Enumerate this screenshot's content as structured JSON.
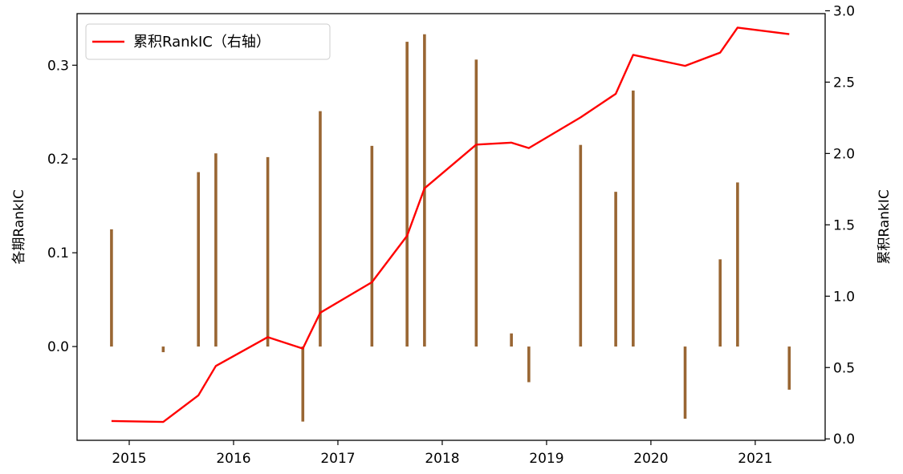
{
  "chart_data": {
    "type": "bar+line",
    "x_ticks": [
      "2015",
      "2016",
      "2017",
      "2018",
      "2019",
      "2020",
      "2021"
    ],
    "left_axis": {
      "label": "各期RankIC",
      "ylim": [
        -0.1,
        0.355
      ],
      "ticks": [
        0.0,
        0.1,
        0.2,
        0.3
      ],
      "tick_labels": [
        "0.0",
        "0.1",
        "0.2",
        "0.3"
      ]
    },
    "right_axis": {
      "label": "累积RankIC",
      "ylim": [
        -0.01,
        2.98
      ],
      "ticks": [
        0.0,
        0.5,
        1.0,
        1.5,
        2.0,
        2.5,
        3.0
      ],
      "tick_labels": [
        "0.0",
        "0.5",
        "1.0",
        "1.5",
        "2.0",
        "2.5",
        "3.0"
      ]
    },
    "bars": {
      "color": "#996633",
      "points": [
        {
          "x": "2014-10-31",
          "y": 0.125
        },
        {
          "x": "2015-04-30",
          "y": -0.006
        },
        {
          "x": "2015-08-31",
          "y": 0.186
        },
        {
          "x": "2015-10-31",
          "y": 0.206
        },
        {
          "x": "2016-04-30",
          "y": 0.202
        },
        {
          "x": "2016-08-31",
          "y": -0.08
        },
        {
          "x": "2016-10-31",
          "y": 0.251
        },
        {
          "x": "2017-04-30",
          "y": 0.214
        },
        {
          "x": "2017-08-31",
          "y": 0.325
        },
        {
          "x": "2017-10-31",
          "y": 0.333
        },
        {
          "x": "2018-04-30",
          "y": 0.306
        },
        {
          "x": "2018-08-31",
          "y": 0.014
        },
        {
          "x": "2018-10-31",
          "y": -0.038
        },
        {
          "x": "2019-04-30",
          "y": 0.215
        },
        {
          "x": "2019-08-31",
          "y": 0.165
        },
        {
          "x": "2019-10-31",
          "y": 0.273
        },
        {
          "x": "2020-04-30",
          "y": -0.077
        },
        {
          "x": "2020-08-31",
          "y": 0.093
        },
        {
          "x": "2020-10-31",
          "y": 0.175
        },
        {
          "x": "2021-04-30",
          "y": -0.046
        }
      ]
    },
    "series": [
      {
        "name": "累积RankIC（右轴）",
        "color": "#ff0000",
        "axis": "right",
        "points": [
          {
            "x": "2014-10-31",
            "y": 0.125
          },
          {
            "x": "2015-04-30",
            "y": 0.119
          },
          {
            "x": "2015-08-31",
            "y": 0.305
          },
          {
            "x": "2015-10-31",
            "y": 0.511
          },
          {
            "x": "2016-04-30",
            "y": 0.713
          },
          {
            "x": "2016-08-31",
            "y": 0.633
          },
          {
            "x": "2016-10-31",
            "y": 0.884
          },
          {
            "x": "2017-04-30",
            "y": 1.098
          },
          {
            "x": "2017-08-31",
            "y": 1.423
          },
          {
            "x": "2017-10-31",
            "y": 1.756
          },
          {
            "x": "2018-04-30",
            "y": 2.062
          },
          {
            "x": "2018-08-31",
            "y": 2.076
          },
          {
            "x": "2018-10-31",
            "y": 2.038
          },
          {
            "x": "2019-04-30",
            "y": 2.253
          },
          {
            "x": "2019-08-31",
            "y": 2.418
          },
          {
            "x": "2019-10-31",
            "y": 2.691
          },
          {
            "x": "2020-04-30",
            "y": 2.614
          },
          {
            "x": "2020-08-31",
            "y": 2.707
          },
          {
            "x": "2020-10-31",
            "y": 2.882
          },
          {
            "x": "2021-04-30",
            "y": 2.836
          }
        ]
      }
    ],
    "legend": {
      "position": "top-left"
    },
    "grid": false
  }
}
